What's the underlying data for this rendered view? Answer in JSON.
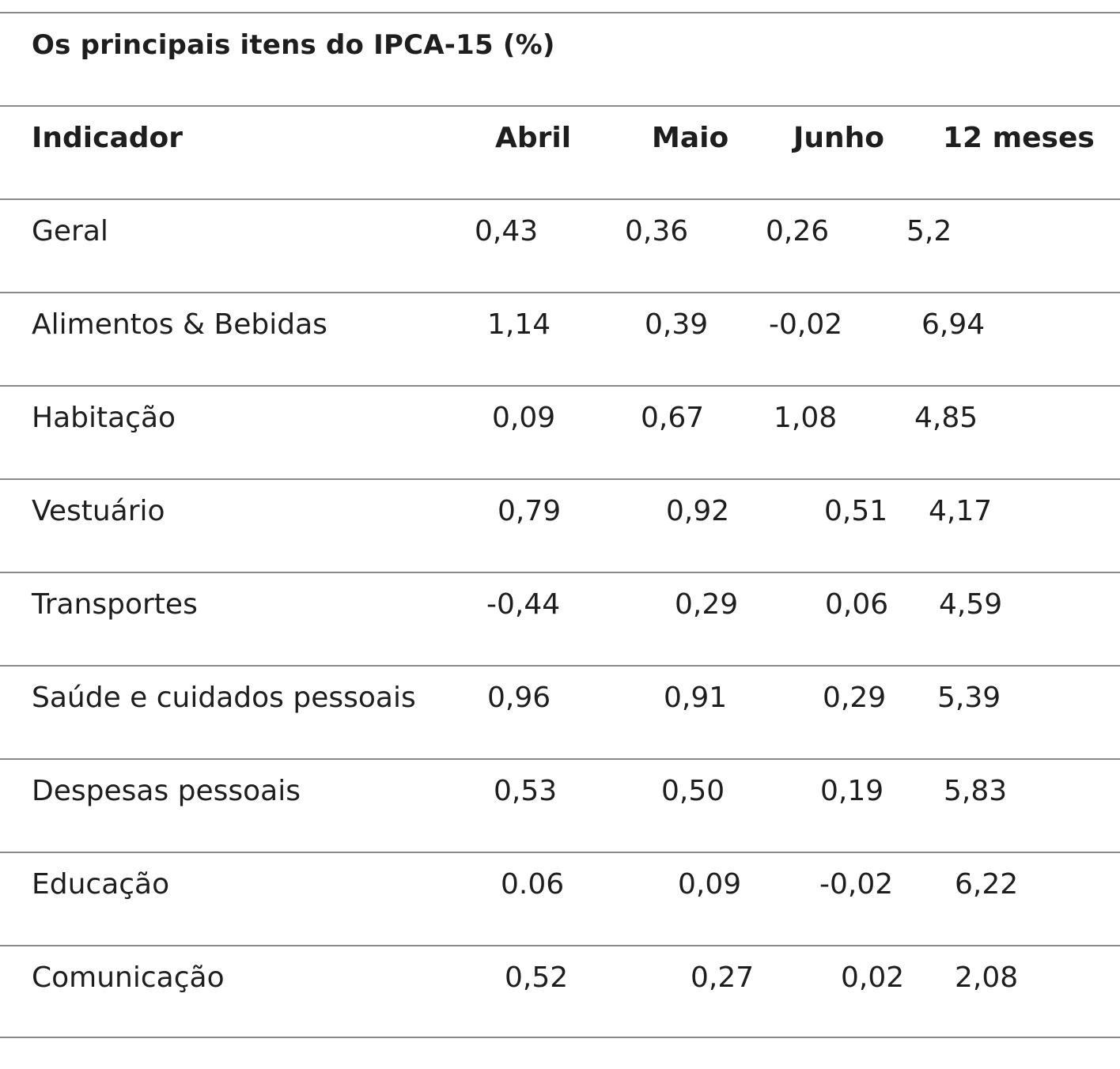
{
  "table": {
    "title": "Os principais itens do IPCA-15 (%)",
    "headers": [
      "Indicador",
      "Abril",
      "Maio",
      "Junho",
      "12 meses"
    ],
    "rows": [
      [
        "Geral",
        "0,43",
        "0,36",
        "0,26",
        "5,2"
      ],
      [
        "Alimentos & Bebidas",
        "1,14",
        "0,39",
        "-0,02",
        "6,94"
      ],
      [
        "Habitação",
        "0,09",
        "0,67",
        "1,08",
        "4,85"
      ],
      [
        "Vestuário",
        "0,79",
        "0,92",
        "0,51",
        "4,17"
      ],
      [
        "Transportes",
        "-0,44",
        "0,29",
        "0,06",
        "4,59"
      ],
      [
        "Saúde e cuidados pessoais",
        "0,96",
        "0,91",
        "0,29",
        "5,39"
      ],
      [
        "Despesas pessoais",
        "0,53",
        "0,50",
        "0,19",
        "5,83"
      ],
      [
        "Educação",
        "0.06",
        "0,09",
        "-0,02",
        "6,22"
      ],
      [
        "Comunicação",
        "0,52",
        "0,27",
        "0,02",
        "2,08"
      ]
    ]
  }
}
